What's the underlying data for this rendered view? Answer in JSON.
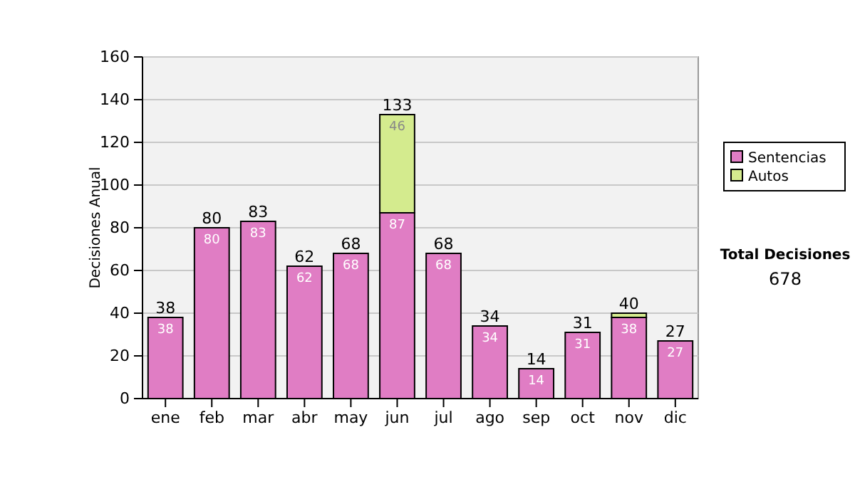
{
  "chart_data": {
    "type": "bar",
    "stacked": true,
    "ylabel": "Decisiones Anual",
    "categories": [
      "ene",
      "feb",
      "mar",
      "abr",
      "may",
      "jun",
      "jul",
      "ago",
      "sep",
      "oct",
      "nov",
      "dic"
    ],
    "series": [
      {
        "name": "Sentencias",
        "color": "#e07dc4",
        "values": [
          38,
          80,
          83,
          62,
          68,
          87,
          68,
          34,
          14,
          31,
          38,
          27
        ],
        "value_labels": [
          "38",
          "80",
          "83",
          "62",
          "68",
          "87",
          "68",
          "34",
          "14",
          "31",
          "38",
          "27"
        ]
      },
      {
        "name": "Autos",
        "color": "#d4eb8e",
        "values": [
          0,
          0,
          0,
          0,
          0,
          46,
          0,
          0,
          0,
          0,
          2,
          0
        ],
        "value_labels": [
          null,
          null,
          null,
          null,
          null,
          "46",
          null,
          null,
          null,
          null,
          null,
          null
        ]
      }
    ],
    "totals": [
      "38",
      "80",
      "83",
      "62",
      "68",
      "133",
      "68",
      "34",
      "14",
      "31",
      "40",
      "27"
    ],
    "ylim": [
      0,
      160
    ],
    "yticks": [
      0,
      20,
      40,
      60,
      80,
      100,
      120,
      140,
      160
    ],
    "grid": "y",
    "legend": "right",
    "annotations": [
      "Total Decisiones",
      "678"
    ]
  }
}
